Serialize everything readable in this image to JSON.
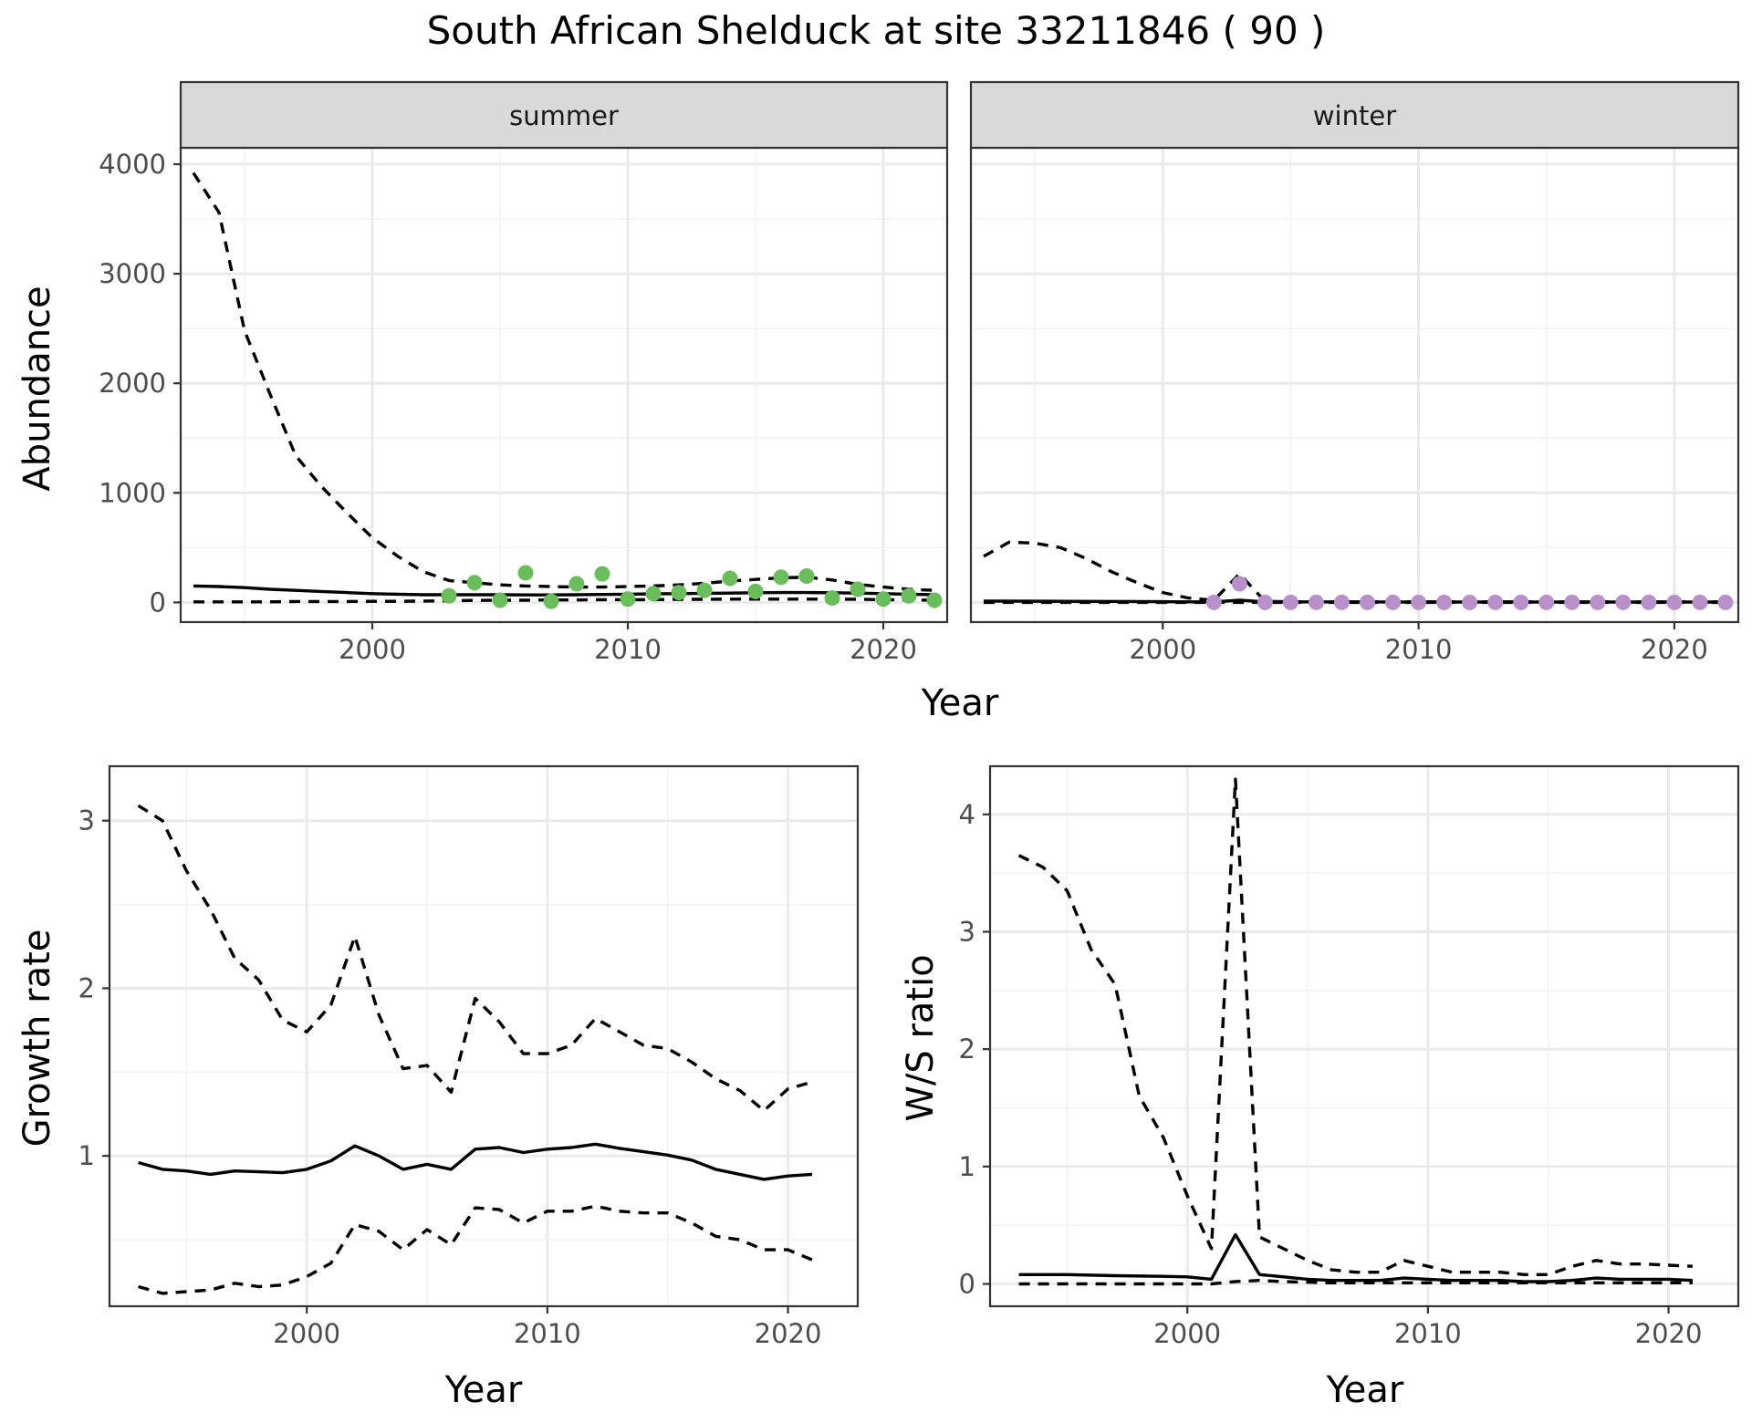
{
  "title": "South African Shelduck at site 33211846 ( 90 )",
  "colors": {
    "summer_points": "#6ABD5B",
    "winter_points": "#B990C9",
    "line": "#000000",
    "strip_bg": "#D9D9D9",
    "grid_major": "#EBEBEB",
    "grid_minor": "#F2F2F2"
  },
  "chart_data": [
    {
      "type": "line",
      "facet": "summer",
      "xlabel": "Year",
      "ylabel": "Abundance",
      "xlim": [
        1992.5,
        2022.5
      ],
      "ylim": [
        -180,
        4150
      ],
      "xticks": [
        2000,
        2010,
        2020
      ],
      "yticks": [
        0,
        1000,
        2000,
        3000,
        4000
      ],
      "grid": true,
      "series": [
        {
          "style": "solid",
          "x": [
            1993,
            1994,
            1995,
            1996,
            1997,
            1998,
            1999,
            2000,
            2001,
            2002,
            2003,
            2004,
            2005,
            2006,
            2007,
            2008,
            2009,
            2010,
            2011,
            2012,
            2013,
            2014,
            2015,
            2016,
            2017,
            2018,
            2019,
            2020,
            2021,
            2022
          ],
          "y": [
            150,
            145,
            135,
            120,
            110,
            100,
            90,
            80,
            75,
            70,
            70,
            70,
            70,
            68,
            68,
            70,
            72,
            75,
            78,
            80,
            82,
            85,
            88,
            90,
            90,
            88,
            85,
            80,
            75,
            70
          ]
        },
        {
          "style": "dashed",
          "x": [
            1993,
            1994,
            1995,
            1996,
            1997,
            1998,
            1999,
            2000,
            2001,
            2002,
            2003,
            2004,
            2005,
            2006,
            2007,
            2008,
            2009,
            2010,
            2011,
            2012,
            2013,
            2014,
            2015,
            2016,
            2017,
            2018,
            2019,
            2020,
            2021,
            2022
          ],
          "y": [
            3920,
            3560,
            2480,
            1900,
            1340,
            1060,
            820,
            590,
            420,
            280,
            200,
            180,
            160,
            150,
            145,
            140,
            140,
            145,
            150,
            160,
            175,
            195,
            210,
            225,
            230,
            205,
            165,
            140,
            120,
            110
          ]
        },
        {
          "style": "dashed",
          "x": [
            1993,
            1994,
            1995,
            1996,
            1997,
            1998,
            1999,
            2000,
            2001,
            2002,
            2003,
            2004,
            2005,
            2006,
            2007,
            2008,
            2009,
            2010,
            2011,
            2012,
            2013,
            2014,
            2015,
            2016,
            2017,
            2018,
            2019,
            2020,
            2021,
            2022
          ],
          "y": [
            5,
            5,
            5,
            5,
            8,
            8,
            8,
            10,
            10,
            12,
            15,
            18,
            20,
            20,
            22,
            22,
            25,
            25,
            25,
            28,
            28,
            30,
            30,
            30,
            30,
            30,
            28,
            25,
            22,
            20
          ]
        },
        {
          "style": "points",
          "x": [
            2003,
            2004,
            2005,
            2006,
            2007,
            2008,
            2009,
            2010,
            2011,
            2012,
            2013,
            2014,
            2015,
            2016,
            2017,
            2018,
            2019,
            2020,
            2021,
            2022
          ],
          "y": [
            60,
            180,
            20,
            270,
            10,
            170,
            260,
            30,
            80,
            90,
            110,
            220,
            100,
            230,
            240,
            40,
            120,
            30,
            60,
            20
          ]
        }
      ]
    },
    {
      "type": "line",
      "facet": "winter",
      "xlabel": "Year",
      "ylabel": "",
      "xlim": [
        1992.5,
        2022.5
      ],
      "ylim": [
        -180,
        4150
      ],
      "xticks": [
        2000,
        2010,
        2020
      ],
      "yticks": [
        0,
        1000,
        2000,
        3000,
        4000
      ],
      "grid": true,
      "series": [
        {
          "style": "solid",
          "x": [
            1993,
            1996,
            1999,
            2001,
            2002,
            2003,
            2004,
            2010,
            2016,
            2022
          ],
          "y": [
            12,
            10,
            8,
            5,
            5,
            20,
            5,
            3,
            3,
            3
          ]
        },
        {
          "style": "dashed",
          "x": [
            1993,
            1994,
            1995,
            1996,
            1997,
            1998,
            1999,
            2000,
            2001,
            2002,
            2003,
            2004,
            2005,
            2010,
            2016,
            2022
          ],
          "y": [
            420,
            550,
            540,
            500,
            400,
            280,
            180,
            90,
            40,
            20,
            260,
            10,
            5,
            5,
            5,
            5
          ]
        },
        {
          "style": "dashed",
          "x": [
            1993,
            1996,
            1999,
            2002,
            2004,
            2010,
            2022
          ],
          "y": [
            0,
            0,
            0,
            0,
            0,
            0,
            0
          ]
        },
        {
          "style": "points",
          "x": [
            2002,
            2003,
            2004,
            2005,
            2006,
            2007,
            2008,
            2009,
            2010,
            2011,
            2012,
            2013,
            2014,
            2015,
            2016,
            2017,
            2018,
            2019,
            2020,
            2021,
            2022
          ],
          "y": [
            0,
            170,
            0,
            0,
            0,
            0,
            0,
            0,
            0,
            0,
            0,
            0,
            0,
            0,
            0,
            0,
            0,
            0,
            0,
            0,
            0
          ]
        }
      ]
    },
    {
      "type": "line",
      "panel": "growth",
      "xlabel": "Year",
      "ylabel": "Growth rate",
      "xlim": [
        1991.8,
        2022.9
      ],
      "ylim": [
        0.103,
        3.325
      ],
      "xticks": [
        2000,
        2010,
        2020
      ],
      "yticks": [
        1,
        2,
        3
      ],
      "grid": true,
      "series": [
        {
          "style": "solid",
          "x": [
            1993,
            1994,
            1995,
            1996,
            1997,
            1998,
            1999,
            2000,
            2001,
            2002,
            2003,
            2004,
            2005,
            2006,
            2007,
            2008,
            2009,
            2010,
            2011,
            2012,
            2013,
            2014,
            2015,
            2016,
            2017,
            2018,
            2019,
            2020,
            2021
          ],
          "y": [
            0.96,
            0.92,
            0.91,
            0.89,
            0.91,
            0.905,
            0.9,
            0.92,
            0.97,
            1.06,
            1.0,
            0.92,
            0.95,
            0.92,
            1.04,
            1.05,
            1.02,
            1.04,
            1.05,
            1.07,
            1.045,
            1.025,
            1.005,
            0.975,
            0.92,
            0.89,
            0.86,
            0.88,
            0.89
          ]
        },
        {
          "style": "dashed",
          "x": [
            1993,
            1994,
            1995,
            1996,
            1997,
            1998,
            1999,
            2000,
            2001,
            2002,
            2003,
            2004,
            2005,
            2006,
            2007,
            2008,
            2009,
            2010,
            2011,
            2012,
            2013,
            2014,
            2015,
            2016,
            2017,
            2018,
            2019,
            2020,
            2021
          ],
          "y": [
            3.09,
            3.0,
            2.7,
            2.47,
            2.18,
            2.05,
            1.81,
            1.74,
            1.9,
            2.31,
            1.84,
            1.52,
            1.54,
            1.38,
            1.94,
            1.8,
            1.61,
            1.61,
            1.66,
            1.82,
            1.74,
            1.66,
            1.64,
            1.56,
            1.46,
            1.39,
            1.27,
            1.4,
            1.44
          ]
        },
        {
          "style": "dashed",
          "x": [
            1993,
            1994,
            1995,
            1996,
            1997,
            1998,
            1999,
            2000,
            2001,
            2002,
            2003,
            2004,
            2005,
            2006,
            2007,
            2008,
            2009,
            2010,
            2011,
            2012,
            2013,
            2014,
            2015,
            2016,
            2017,
            2018,
            2019,
            2020,
            2021
          ],
          "y": [
            0.22,
            0.18,
            0.19,
            0.2,
            0.24,
            0.22,
            0.23,
            0.28,
            0.36,
            0.59,
            0.55,
            0.44,
            0.56,
            0.47,
            0.69,
            0.68,
            0.6,
            0.67,
            0.67,
            0.7,
            0.67,
            0.66,
            0.66,
            0.6,
            0.52,
            0.5,
            0.44,
            0.44,
            0.38
          ]
        }
      ]
    },
    {
      "type": "line",
      "panel": "ratio",
      "xlabel": "Year",
      "ylabel": "W/S ratio",
      "xlim": [
        1991.8,
        2022.9
      ],
      "ylim": [
        -0.19,
        4.41
      ],
      "xticks": [
        2000,
        2010,
        2020
      ],
      "yticks": [
        0,
        1,
        2,
        3,
        4
      ],
      "grid": true,
      "series": [
        {
          "style": "solid",
          "x": [
            1993,
            1995,
            1997,
            1999,
            2000,
            2001,
            2002,
            2003,
            2004,
            2005,
            2006,
            2007,
            2008,
            2009,
            2010,
            2011,
            2012,
            2013,
            2014,
            2015,
            2016,
            2017,
            2018,
            2019,
            2020,
            2021
          ],
          "y": [
            0.08,
            0.08,
            0.07,
            0.065,
            0.06,
            0.04,
            0.42,
            0.08,
            0.06,
            0.04,
            0.03,
            0.03,
            0.03,
            0.05,
            0.04,
            0.03,
            0.03,
            0.03,
            0.02,
            0.02,
            0.03,
            0.05,
            0.04,
            0.04,
            0.04,
            0.03
          ]
        },
        {
          "style": "dashed",
          "x": [
            1993,
            1994,
            1995,
            1996,
            1997,
            1998,
            1999,
            2000,
            2001,
            2002,
            2003,
            2004,
            2005,
            2006,
            2007,
            2008,
            2009,
            2010,
            2011,
            2012,
            2013,
            2014,
            2015,
            2016,
            2017,
            2018,
            2019,
            2020,
            2021
          ],
          "y": [
            3.65,
            3.55,
            3.35,
            2.85,
            2.55,
            1.6,
            1.25,
            0.75,
            0.3,
            4.3,
            0.4,
            0.3,
            0.2,
            0.12,
            0.1,
            0.1,
            0.2,
            0.15,
            0.1,
            0.1,
            0.1,
            0.08,
            0.08,
            0.15,
            0.2,
            0.17,
            0.17,
            0.16,
            0.15
          ]
        },
        {
          "style": "dashed",
          "x": [
            1993,
            1996,
            1999,
            2001,
            2002,
            2003,
            2004,
            2006,
            2008,
            2010,
            2012,
            2015,
            2018,
            2021
          ],
          "y": [
            0,
            0,
            0,
            0,
            0.02,
            0.03,
            0.02,
            0.01,
            0.01,
            0.01,
            0.01,
            0.01,
            0.01,
            0.01
          ]
        }
      ]
    }
  ],
  "panels": [
    {
      "strip": "summer",
      "ticks_x": [
        "2000",
        "2010",
        "2020"
      ],
      "ticks_y": [
        "0",
        "1000",
        "2000",
        "3000",
        "4000"
      ]
    },
    {
      "strip": "winter",
      "ticks_x": [
        "2000",
        "2010",
        "2020"
      ],
      "ticks_y": []
    },
    {
      "strip": "",
      "ticks_x": [
        "2000",
        "2010",
        "2020"
      ],
      "ticks_y": [
        "1",
        "2",
        "3"
      ]
    },
    {
      "strip": "",
      "ticks_x": [
        "2000",
        "2010",
        "2020"
      ],
      "ticks_y": [
        "0",
        "1",
        "2",
        "3",
        "4"
      ]
    }
  ]
}
